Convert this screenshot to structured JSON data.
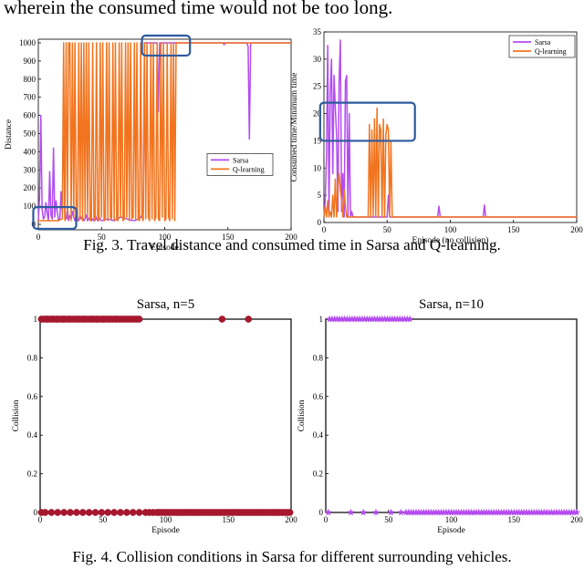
{
  "page": {
    "top_text": "wherein the consumed time would not be too long.",
    "fig3_caption": "Fig. 3. Travel distance and consumed time in Sarsa and Q-learning.",
    "fig4_caption": "Fig. 4. Collision conditions in Sarsa for different surrounding vehicles."
  },
  "colors": {
    "sarsa_line": "#b44bf0",
    "qlearning_line": "#f2741e",
    "sarsa_n5_marker": "#a5182d",
    "sarsa_n10_marker": "#b44bf0",
    "highlight_box": "#2e5a9e",
    "axis": "#000000"
  },
  "chart_data": [
    {
      "type": "line",
      "id": "distance",
      "title": "",
      "xlabel": "Episode",
      "ylabel": "Distance",
      "xlim": [
        0,
        200
      ],
      "ylim": [
        -30,
        1020
      ],
      "xticks": [
        0,
        50,
        100,
        150,
        200
      ],
      "yticks": [
        0,
        100,
        200,
        300,
        400,
        500,
        600,
        700,
        800,
        900,
        1000
      ],
      "grid": false,
      "legend": "center-right",
      "highlights": [
        {
          "x0": -4,
          "x1": 30,
          "y0": -25,
          "y1": 95
        },
        {
          "x0": 82,
          "x1": 120,
          "y0": 930,
          "y1": 1040
        }
      ],
      "series": [
        {
          "name": "Sarsa",
          "x": [
            0,
            1,
            2,
            3,
            4,
            5,
            6,
            7,
            8,
            9,
            10,
            11,
            12,
            13,
            14,
            15,
            16,
            17,
            18,
            19,
            20,
            21,
            22,
            23,
            24,
            25,
            26,
            27,
            28,
            29,
            30,
            31,
            32,
            33,
            34,
            35,
            36,
            37,
            38,
            39,
            40,
            41,
            42,
            43,
            44,
            45,
            46,
            47,
            48,
            49,
            50,
            55,
            60,
            65,
            70,
            75,
            80,
            83,
            84,
            86,
            88,
            90,
            92,
            94,
            95,
            96,
            97,
            98,
            99,
            100,
            105,
            110,
            120,
            140,
            146,
            147,
            148,
            160,
            165,
            166,
            167,
            168,
            170,
            180,
            190,
            200
          ],
          "y": [
            20,
            150,
            600,
            80,
            30,
            40,
            120,
            60,
            20,
            290,
            50,
            30,
            420,
            40,
            130,
            70,
            20,
            30,
            180,
            60,
            640,
            40,
            30,
            90,
            20,
            50,
            30,
            70,
            40,
            20,
            60,
            30,
            20,
            50,
            30,
            40,
            20,
            30,
            50,
            20,
            30,
            40,
            20,
            30,
            20,
            50,
            30,
            20,
            40,
            30,
            20,
            30,
            20,
            40,
            30,
            20,
            30,
            60,
            1000,
            1000,
            1000,
            1000,
            1000,
            1000,
            620,
            1000,
            1000,
            1000,
            1000,
            1000,
            1000,
            1000,
            1000,
            1000,
            1000,
            990,
            1000,
            1000,
            1000,
            980,
            470,
            1000,
            1000,
            1000,
            1000,
            1000
          ]
        },
        {
          "name": "Q-learning",
          "x": [
            0,
            5,
            10,
            15,
            19,
            20,
            21,
            22,
            23,
            24,
            25,
            26,
            27,
            28,
            29,
            30,
            31,
            32,
            33,
            34,
            35,
            36,
            37,
            38,
            39,
            40,
            41,
            42,
            43,
            44,
            45,
            46,
            47,
            48,
            49,
            50,
            51,
            52,
            53,
            54,
            55,
            56,
            57,
            58,
            59,
            60,
            61,
            62,
            63,
            64,
            65,
            66,
            67,
            68,
            69,
            70,
            71,
            72,
            73,
            74,
            75,
            76,
            77,
            78,
            79,
            80,
            81,
            82,
            83,
            84,
            85,
            86,
            87,
            88,
            89,
            90,
            91,
            92,
            93,
            94,
            95,
            96,
            97,
            98,
            99,
            100,
            101,
            102,
            103,
            104,
            105,
            106,
            107,
            108,
            109,
            110,
            120,
            150,
            200
          ],
          "y": [
            20,
            20,
            20,
            20,
            30,
            1000,
            20,
            1000,
            30,
            1000,
            1000,
            20,
            1000,
            40,
            1000,
            30,
            20,
            1000,
            30,
            1000,
            20,
            1000,
            40,
            1000,
            30,
            1000,
            20,
            30,
            1000,
            40,
            20,
            1000,
            30,
            20,
            1000,
            40,
            1000,
            20,
            30,
            1000,
            20,
            1000,
            40,
            30,
            1000,
            20,
            1000,
            30,
            20,
            1000,
            40,
            1000,
            20,
            30,
            1000,
            40,
            1000,
            20,
            1000,
            30,
            40,
            1000,
            20,
            1000,
            30,
            20,
            1000,
            40,
            20,
            1000,
            30,
            1000,
            40,
            20,
            1000,
            30,
            1000,
            20,
            40,
            1000,
            30,
            20,
            1000,
            40,
            1000,
            20,
            30,
            1000,
            40,
            20,
            1000,
            30,
            1000,
            20,
            1000,
            1000,
            1000,
            1000,
            1000
          ]
        }
      ]
    },
    {
      "type": "line",
      "id": "consumed_time",
      "title": "",
      "xlabel": "Episode (no collision)",
      "ylabel": "Consumed time/Minimum time",
      "xlim": [
        0,
        200
      ],
      "ylim": [
        0,
        35
      ],
      "xticks": [
        0,
        50,
        100,
        150,
        200
      ],
      "yticks": [
        0,
        5,
        10,
        15,
        20,
        25,
        30,
        35
      ],
      "grid": false,
      "legend": "top-right",
      "highlights": [
        {
          "x0": -3,
          "x1": 72,
          "y0": 15,
          "y1": 22
        }
      ],
      "series": [
        {
          "name": "Sarsa",
          "x": [
            0,
            1,
            2,
            3,
            4,
            5,
            6,
            7,
            8,
            9,
            10,
            11,
            12,
            13,
            14,
            15,
            16,
            17,
            18,
            19,
            20,
            21,
            22,
            23,
            24,
            25,
            30,
            40,
            50,
            51,
            52,
            53,
            54,
            55,
            60,
            89,
            90,
            91,
            92,
            95,
            100,
            125,
            126,
            127,
            128,
            130,
            150,
            200
          ],
          "y": [
            1,
            4,
            12,
            32.5,
            2,
            24,
            30,
            9,
            27,
            21,
            16,
            2,
            26,
            33.5,
            2,
            9,
            1,
            26,
            27,
            1,
            20,
            1,
            2,
            1,
            1,
            1,
            1,
            1,
            1,
            5,
            1,
            1,
            1,
            1,
            1,
            1,
            1,
            3,
            1,
            1,
            1,
            1,
            1,
            3.2,
            1,
            1,
            1,
            1
          ]
        },
        {
          "name": "Q-learning",
          "x": [
            0,
            1,
            2,
            3,
            4,
            5,
            6,
            7,
            8,
            9,
            10,
            11,
            12,
            13,
            14,
            15,
            16,
            17,
            18,
            20,
            30,
            35,
            36,
            37,
            38,
            39,
            40,
            41,
            42,
            43,
            44,
            45,
            46,
            47,
            48,
            49,
            50,
            51,
            52,
            53,
            54,
            55,
            60,
            100,
            200
          ],
          "y": [
            1,
            3,
            1,
            4,
            1,
            2,
            1,
            5,
            1,
            8,
            1,
            7,
            9,
            6,
            4,
            1,
            6,
            3,
            1,
            1,
            1,
            1,
            18,
            1,
            17,
            1,
            19,
            1,
            21,
            1,
            18,
            17,
            1,
            19,
            1,
            16,
            18,
            17,
            1,
            15,
            1,
            1,
            1,
            1,
            1
          ]
        }
      ]
    },
    {
      "type": "scatter",
      "id": "collision_n5",
      "title": "Sarsa, n=5",
      "xlabel": "Episode",
      "ylabel": "Collision",
      "xlim": [
        0,
        200
      ],
      "ylim": [
        0,
        1
      ],
      "xticks": [
        0,
        50,
        100,
        150,
        200
      ],
      "yticks": [
        0,
        0.2,
        0.4,
        0.6,
        0.8,
        1
      ],
      "grid": false,
      "marker": "circle",
      "series": [
        {
          "name": "",
          "x": [
            1,
            3,
            5,
            6,
            8,
            10,
            11,
            13,
            14,
            16,
            18,
            19,
            21,
            23,
            24,
            26,
            28,
            30,
            31,
            33,
            35,
            36,
            38,
            40,
            41,
            43,
            45,
            46,
            48,
            50,
            51,
            53,
            55,
            56,
            58,
            60,
            61,
            63,
            65,
            67,
            69,
            71,
            73,
            75,
            77,
            79,
            145,
            166,
            1,
            4,
            9,
            14,
            19,
            24,
            29,
            34,
            39,
            44,
            49,
            54,
            59,
            64,
            69,
            74,
            79,
            84,
            87,
            90,
            93,
            95,
            97,
            99,
            101,
            103,
            105,
            107,
            109,
            111,
            113,
            115,
            117,
            119,
            121,
            123,
            125,
            127,
            129,
            131,
            133,
            135,
            137,
            139,
            141,
            143,
            145,
            147,
            149,
            151,
            153,
            155,
            157,
            159,
            161,
            163,
            165,
            167,
            169,
            171,
            173,
            175,
            177,
            179,
            181,
            183,
            185,
            187,
            189,
            191,
            193,
            195,
            197,
            199
          ],
          "y": [
            1,
            1,
            1,
            1,
            1,
            1,
            1,
            1,
            1,
            1,
            1,
            1,
            1,
            1,
            1,
            1,
            1,
            1,
            1,
            1,
            1,
            1,
            1,
            1,
            1,
            1,
            1,
            1,
            1,
            1,
            1,
            1,
            1,
            1,
            1,
            1,
            1,
            1,
            1,
            1,
            1,
            1,
            1,
            1,
            1,
            1,
            1,
            1,
            0,
            0,
            0,
            0,
            0,
            0,
            0,
            0,
            0,
            0,
            0,
            0,
            0,
            0,
            0,
            0,
            0,
            0,
            0,
            0,
            0,
            0,
            0,
            0,
            0,
            0,
            0,
            0,
            0,
            0,
            0,
            0,
            0,
            0,
            0,
            0,
            0,
            0,
            0,
            0,
            0,
            0,
            0,
            0,
            0,
            0,
            0,
            0,
            0,
            0,
            0,
            0,
            0,
            0,
            0,
            0,
            0,
            0,
            0,
            0,
            0,
            0,
            0,
            0,
            0,
            0,
            0,
            0,
            0,
            0,
            0,
            0,
            0,
            0
          ]
        }
      ]
    },
    {
      "type": "scatter",
      "id": "collision_n10",
      "title": "Sarsa, n=10",
      "xlabel": "Episode",
      "ylabel": "Collision",
      "xlim": [
        0,
        200
      ],
      "ylim": [
        0,
        1
      ],
      "xticks": [
        0,
        50,
        100,
        150,
        200
      ],
      "yticks": [
        0,
        0.2,
        0.4,
        0.6,
        0.8,
        1
      ],
      "grid": false,
      "marker": "star",
      "series": [
        {
          "name": "",
          "x": [
            3,
            5,
            7,
            9,
            11,
            13,
            15,
            17,
            19,
            21,
            23,
            25,
            27,
            29,
            31,
            33,
            35,
            37,
            39,
            41,
            43,
            45,
            47,
            49,
            51,
            53,
            55,
            57,
            59,
            61,
            63,
            65,
            67,
            2,
            20,
            30,
            40,
            52,
            60,
            64,
            66,
            68,
            70,
            72,
            74,
            76,
            78,
            80,
            82,
            84,
            86,
            88,
            90,
            92,
            94,
            96,
            98,
            100,
            102,
            104,
            106,
            108,
            110,
            112,
            114,
            116,
            118,
            120,
            122,
            124,
            126,
            128,
            130,
            132,
            134,
            136,
            138,
            140,
            142,
            144,
            146,
            148,
            150,
            152,
            154,
            156,
            158,
            160,
            162,
            164,
            166,
            168,
            170,
            172,
            174,
            176,
            178,
            180,
            182,
            184,
            186,
            188,
            190,
            192,
            194,
            196,
            198,
            200
          ],
          "y": [
            1,
            1,
            1,
            1,
            1,
            1,
            1,
            1,
            1,
            1,
            1,
            1,
            1,
            1,
            1,
            1,
            1,
            1,
            1,
            1,
            1,
            1,
            1,
            1,
            1,
            1,
            1,
            1,
            1,
            1,
            1,
            1,
            1,
            0,
            0,
            0,
            0,
            0,
            0,
            0,
            0,
            0,
            0,
            0,
            0,
            0,
            0,
            0,
            0,
            0,
            0,
            0,
            0,
            0,
            0,
            0,
            0,
            0,
            0,
            0,
            0,
            0,
            0,
            0,
            0,
            0,
            0,
            0,
            0,
            0,
            0,
            0,
            0,
            0,
            0,
            0,
            0,
            0,
            0,
            0,
            0,
            0,
            0,
            0,
            0,
            0,
            0,
            0,
            0,
            0,
            0,
            0,
            0,
            0,
            0,
            0,
            0,
            0,
            0,
            0,
            0,
            0,
            0,
            0,
            0,
            0,
            0,
            0
          ]
        }
      ]
    }
  ]
}
